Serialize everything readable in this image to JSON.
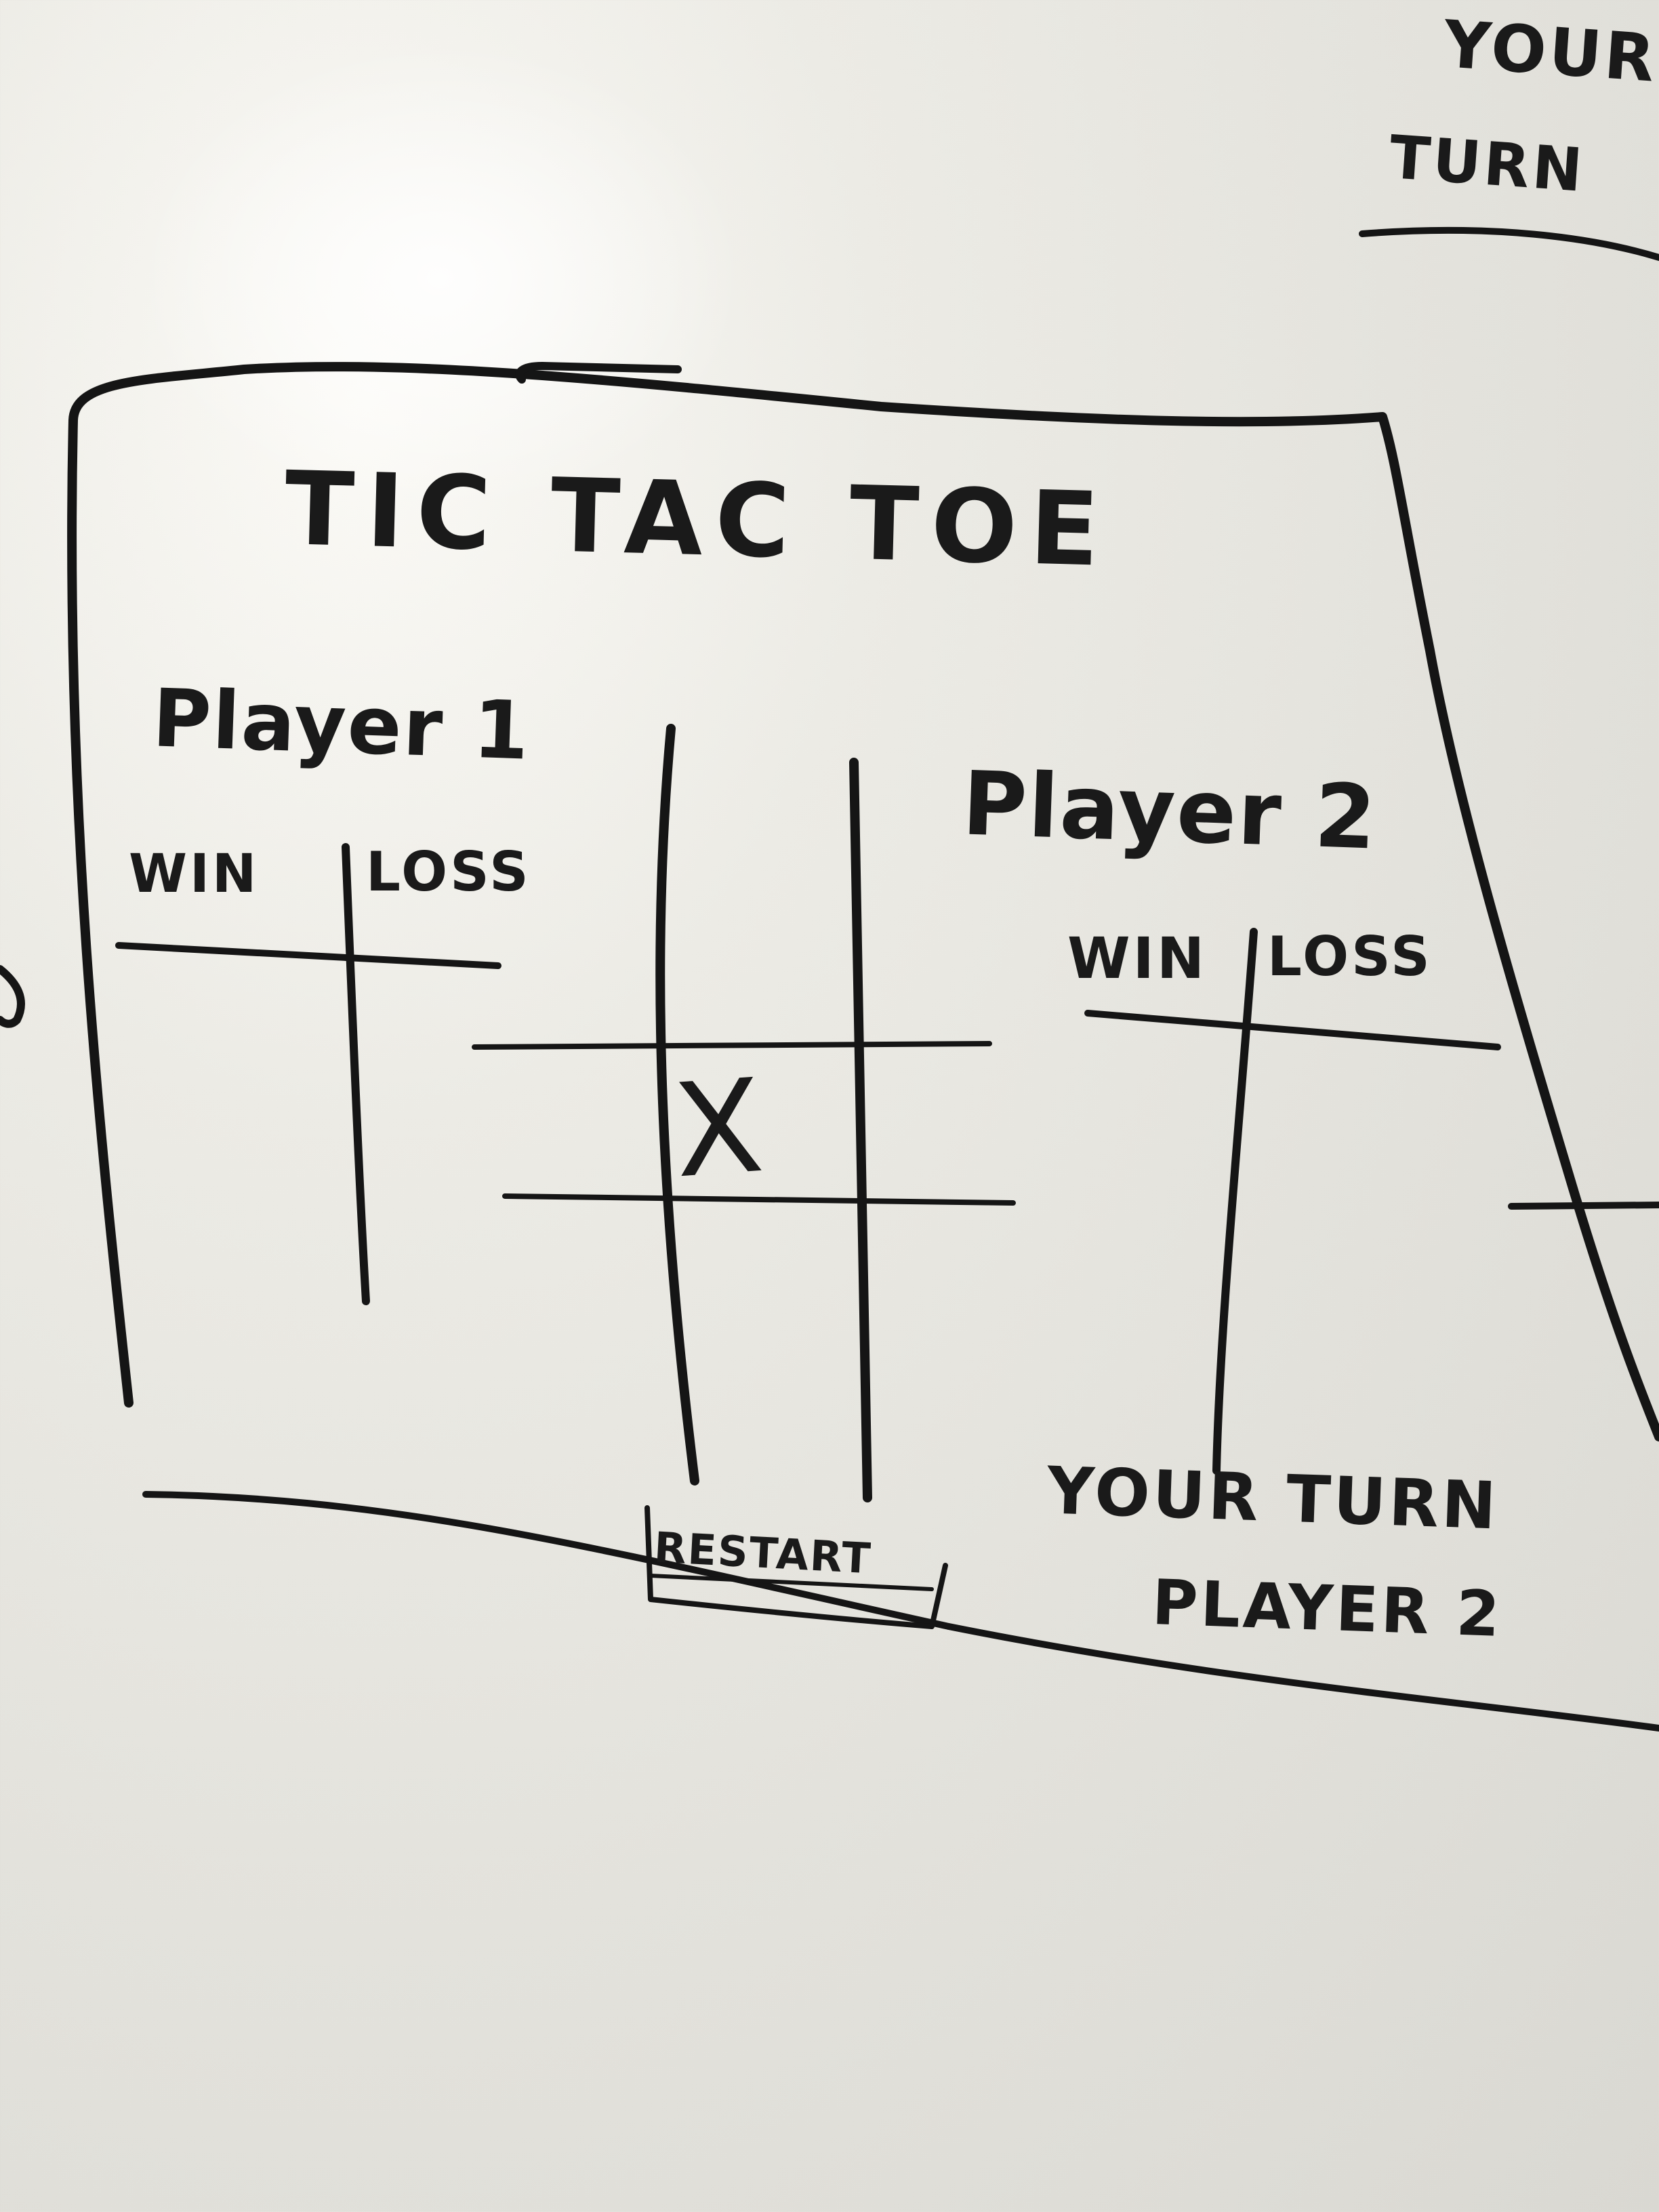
{
  "game": {
    "title": "TIC TAC TOE",
    "player1": {
      "label": "Player 1",
      "win_label": "WIN",
      "loss_label": "LOSS"
    },
    "player2": {
      "label": "Player 2",
      "win_label": "WIN",
      "loss_label": "LOSS"
    },
    "board": {
      "marks": [
        "",
        "",
        "",
        "X",
        "",
        "",
        "",
        "",
        ""
      ]
    },
    "restart_label": "RESTART",
    "turn_status_line1": "YOUR TURN",
    "turn_status_line2": "PLAYER 2"
  },
  "next_screen": {
    "line1": "YOUR",
    "line2": "TURN"
  }
}
